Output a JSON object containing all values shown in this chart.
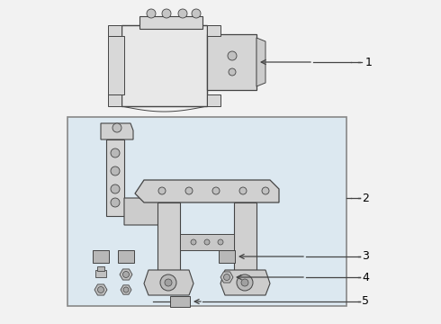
{
  "bg_color": "#f2f2f2",
  "box_bg": "#dce8f0",
  "box_border": "#888888",
  "line_color": "#444444",
  "white": "#ffffff",
  "label_color": "#000000",
  "part_fill": "#c8c8c8",
  "part_edge": "#555555"
}
